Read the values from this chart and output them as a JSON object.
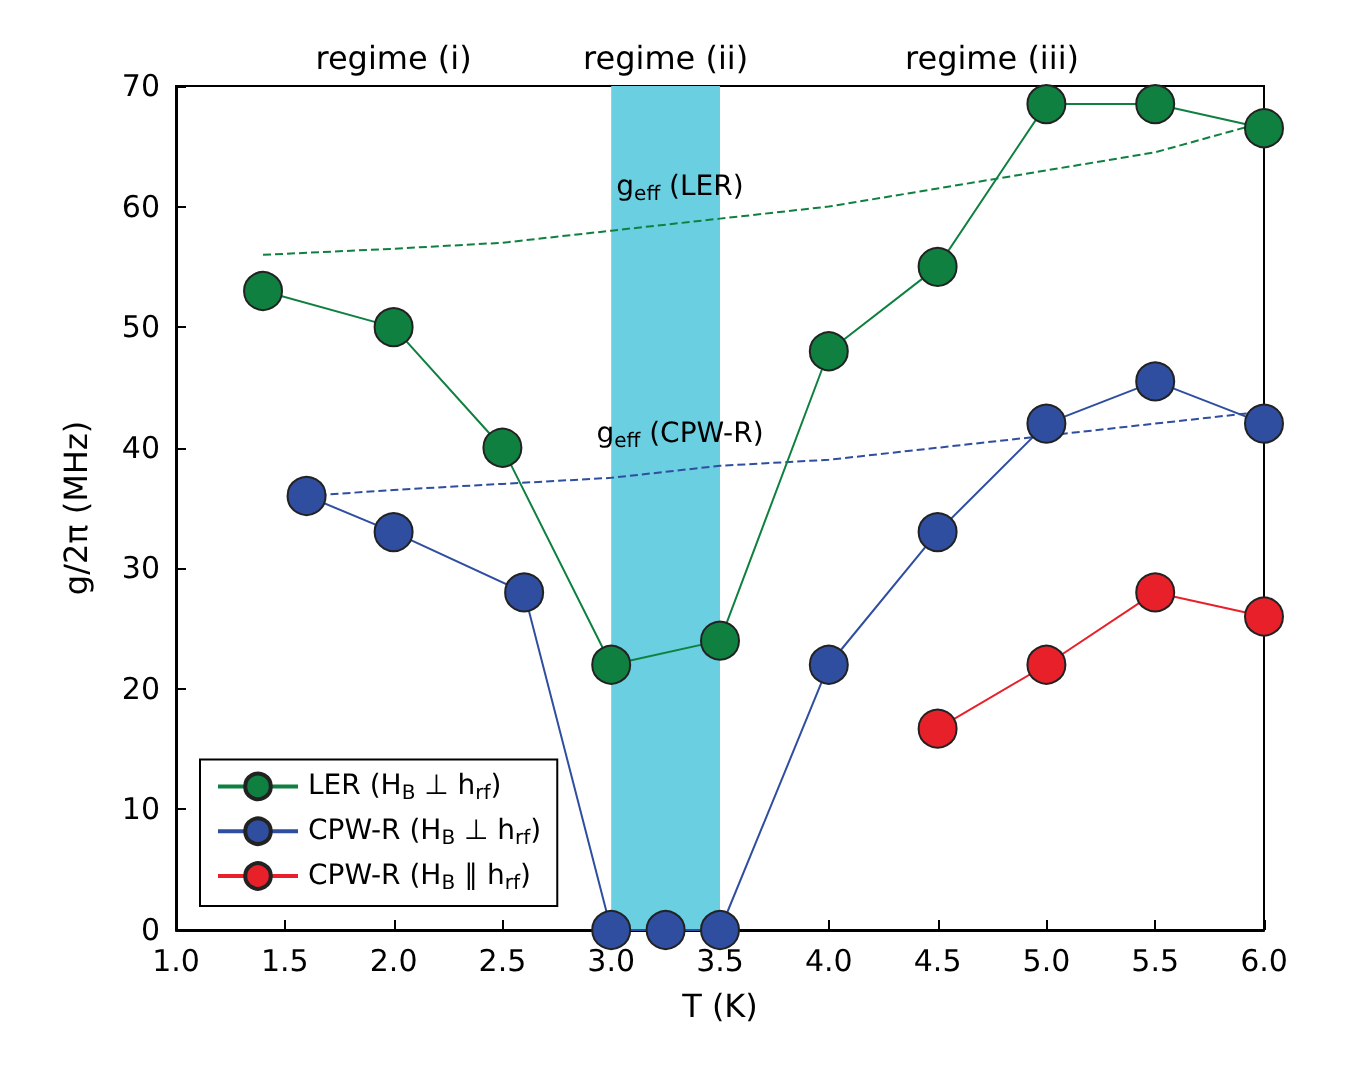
{
  "chart_data": {
    "type": "line",
    "xlabel": "T (K)",
    "ylabel": "g/2π (MHz)",
    "xlim": [
      1.0,
      6.0
    ],
    "ylim": [
      0,
      70
    ],
    "xticks": [
      {
        "value": 1,
        "label": "1.0"
      },
      {
        "value": 1.5,
        "label": "1.5"
      },
      {
        "value": 2,
        "label": "2.0"
      },
      {
        "value": 2.5,
        "label": "2.5"
      },
      {
        "value": 3,
        "label": "3.0"
      },
      {
        "value": 3.5,
        "label": "3.5"
      },
      {
        "value": 4,
        "label": "4.0"
      },
      {
        "value": 4.5,
        "label": "4.5"
      },
      {
        "value": 5,
        "label": "5.0"
      },
      {
        "value": 5.5,
        "label": "5.5"
      },
      {
        "value": 6,
        "label": "6.0"
      }
    ],
    "yticks": [
      0,
      10,
      20,
      30,
      40,
      50,
      60,
      70
    ],
    "grid": false,
    "legend": "bottom left",
    "marker": "circle",
    "line_style": "solid",
    "series": [
      {
        "name": "LER (H$_{B}$ ⊥ h$_{rf}$)",
        "color": "#0f8040",
        "x": [
          1.4,
          2.0,
          2.5,
          3.0,
          3.5,
          4.0,
          4.5,
          5.0,
          5.5,
          6.0
        ],
        "values": [
          53,
          50,
          40,
          22,
          24,
          48,
          55,
          68.5,
          68.5,
          66.5
        ]
      },
      {
        "name": "CPW-R (H$_{B}$ ⊥ h$_{rf}$)",
        "color": "#2f4ea0",
        "x": [
          1.6,
          2.0,
          2.6,
          3.0,
          3.25,
          3.5,
          4.0,
          4.5,
          5.0,
          5.5,
          6.0
        ],
        "values": [
          36,
          33,
          28,
          0,
          0,
          0,
          22,
          33,
          42,
          45.5,
          42
        ]
      },
      {
        "name": "CPW-R (H$_{B}$ ∥ h$_{rf}$)",
        "color": "#e8202a",
        "x": [
          4.5,
          5.0,
          5.5,
          6.0
        ],
        "values": [
          16.7,
          22,
          28,
          26
        ]
      },
      {
        "color": "#0f8040",
        "marker": "none",
        "line_style": "dashed",
        "x": [
          1.4,
          2.0,
          2.5,
          3.0,
          3.5,
          4.0,
          4.5,
          5.0,
          5.5,
          6.0
        ],
        "values": [
          56,
          56.5,
          57,
          58,
          59,
          60,
          61.5,
          63,
          64.5,
          67
        ]
      },
      {
        "color": "#2f4ea0",
        "marker": "none",
        "line_style": "dashed",
        "x": [
          1.6,
          2.0,
          2.5,
          3.0,
          3.5,
          4.0,
          4.5,
          5.0,
          5.5,
          6.0
        ],
        "values": [
          36,
          36.5,
          37,
          37.5,
          38.5,
          39,
          40,
          41,
          42,
          43
        ]
      }
    ],
    "bands": [
      {
        "axis": "x",
        "from": 3.0,
        "to": 3.5,
        "color": "#6acfe0"
      }
    ],
    "annotations": [
      "regime (i)",
      "regime (ii)",
      "regime (iii)",
      "g$_{eff}$ (LER)",
      "g$_{eff}$ (CPW-R)"
    ]
  }
}
